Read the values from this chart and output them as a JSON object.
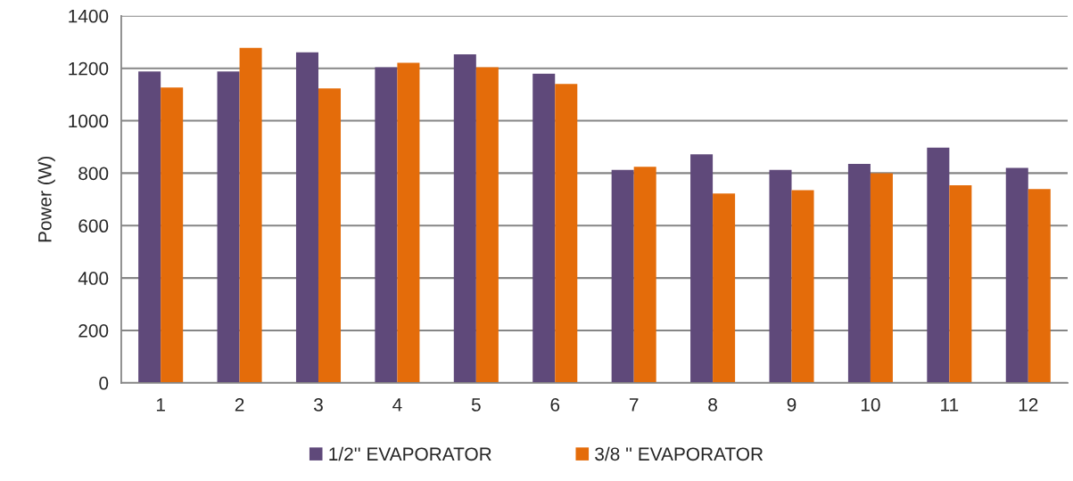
{
  "chart_data": {
    "type": "bar",
    "ylabel": "Power (W)",
    "categories": [
      "1",
      "2",
      "3",
      "4",
      "5",
      "6",
      "7",
      "8",
      "9",
      "10",
      "11",
      "12"
    ],
    "series": [
      {
        "name": "1/2'' EVAPORATOR",
        "color": "#5f497a",
        "values": [
          1188,
          1188,
          1261,
          1204,
          1253,
          1179,
          812,
          872,
          812,
          835,
          897,
          820
        ]
      },
      {
        "name": "3/8 '' EVAPORATOR",
        "color": "#e46c0a",
        "values": [
          1127,
          1278,
          1123,
          1221,
          1204,
          1140,
          824,
          722,
          735,
          800,
          754,
          739
        ]
      }
    ],
    "ylim": [
      0,
      1400
    ],
    "yticks": [
      0,
      200,
      400,
      600,
      800,
      1000,
      1200,
      1400
    ],
    "grid": "y",
    "legend": "bottom"
  }
}
